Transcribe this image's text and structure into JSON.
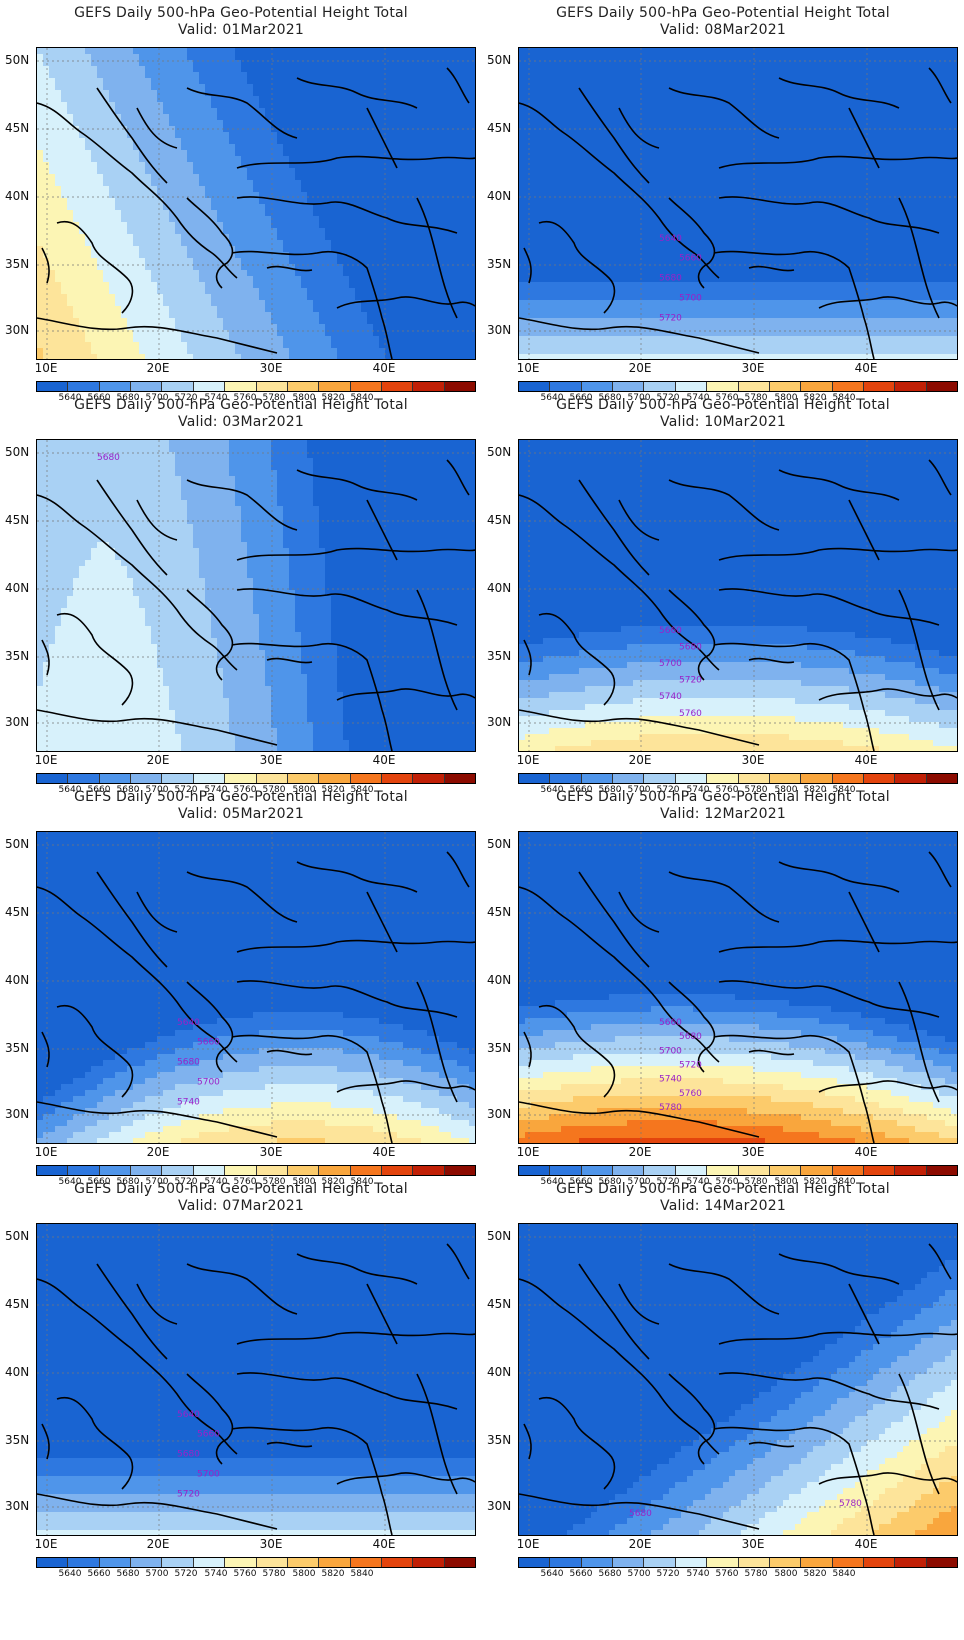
{
  "palette": [
    "#1964d2",
    "#2e78e0",
    "#4f95ea",
    "#7fb2ee",
    "#a9d1f4",
    "#d7f1fb",
    "#fcf5b4",
    "#fde49a",
    "#fccb6b",
    "#f9a63d",
    "#f5761e",
    "#e3440d",
    "#c12006",
    "#8c0b00"
  ],
  "contour_color": "#9a22c8",
  "coast_color": "#000000",
  "colorbar_labels": [
    "5640",
    "5660",
    "5680",
    "5700",
    "5720",
    "5740",
    "5760",
    "5780",
    "5800",
    "5820",
    "5840"
  ],
  "lat_labels": [
    "50N",
    "45N",
    "40N",
    "35N",
    "30N"
  ],
  "lon_labels": [
    "10E",
    "20E",
    "30E",
    "40E"
  ],
  "panels": [
    {
      "title": "GEFS Daily 500-hPa Geo-Potential Height Total",
      "valid": "Valid: 01Mar2021",
      "pattern": "west"
    },
    {
      "title": "GEFS Daily 500-hPa Geo-Potential Height Total",
      "valid": "Valid: 08Mar2021",
      "pattern": "south-low",
      "labels": [
        "5640",
        "5660",
        "5680",
        "5700",
        "5720"
      ]
    },
    {
      "title": "GEFS Daily 500-hPa Geo-Potential Height Total",
      "valid": "Valid: 03Mar2021",
      "pattern": "west2",
      "labels": [
        "5680"
      ]
    },
    {
      "title": "GEFS Daily 500-hPa Geo-Potential Height Total",
      "valid": "Valid: 10Mar2021",
      "pattern": "south-mid",
      "labels": [
        "5660",
        "5680",
        "5700",
        "5720",
        "5740",
        "5760"
      ]
    },
    {
      "title": "GEFS Daily 500-hPa Geo-Potential Height Total",
      "valid": "Valid: 05Mar2021",
      "pattern": "south-dome",
      "labels": [
        "5640",
        "5660",
        "5680",
        "5700",
        "5740"
      ]
    },
    {
      "title": "GEFS Daily 500-hPa Geo-Potential Height Total",
      "valid": "Valid: 12Mar2021",
      "pattern": "south-high",
      "labels": [
        "5660",
        "5680",
        "5700",
        "5720",
        "5740",
        "5760",
        "5780"
      ]
    },
    {
      "title": "GEFS Daily 500-hPa Geo-Potential Height Total",
      "valid": "Valid: 07Mar2021",
      "pattern": "south-low2",
      "labels": [
        "5640",
        "5660",
        "5680",
        "5700",
        "5720"
      ]
    },
    {
      "title": "GEFS Daily 500-hPa Geo-Potential Height Total",
      "valid": "Valid: 14Mar2021",
      "pattern": "southeast",
      "labels": [
        "5680",
        "5780"
      ]
    }
  ]
}
